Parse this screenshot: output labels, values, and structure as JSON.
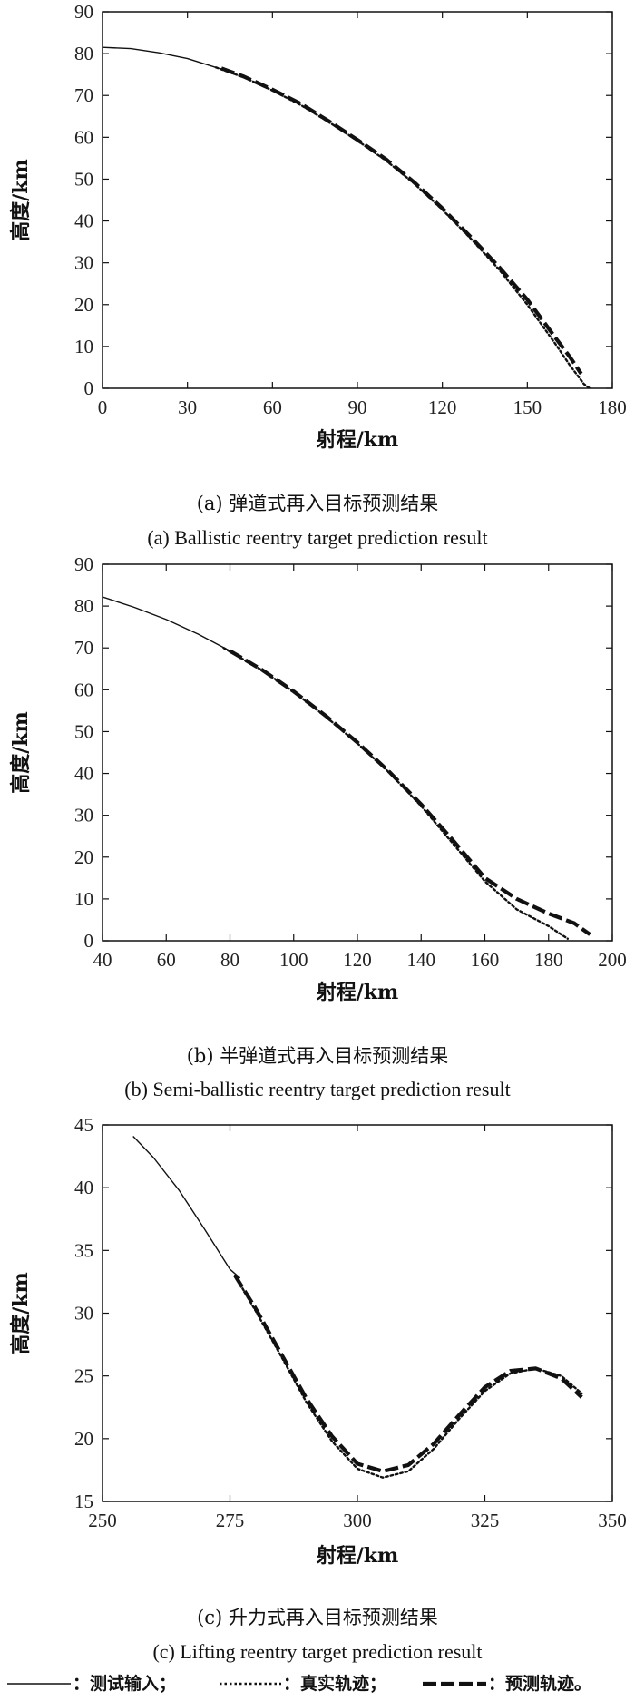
{
  "chart_data": [
    {
      "type": "line",
      "xlabel": "射程/km",
      "ylabel": "高度/km",
      "xlim": [
        0,
        180
      ],
      "ylim": [
        0,
        90
      ],
      "xticks": [
        0,
        30,
        60,
        90,
        120,
        150,
        180
      ],
      "yticks": [
        0,
        10,
        20,
        30,
        40,
        50,
        60,
        70,
        80,
        90
      ],
      "caption_cn": "(a) 弹道式再入目标预测结果",
      "caption_en": "(a) Ballistic reentry target prediction result",
      "series": [
        {
          "name": "测试输入",
          "style": "solid",
          "x": [
            0,
            10,
            20,
            30,
            40,
            45
          ],
          "y": [
            81.5,
            81.2,
            80.2,
            78.8,
            76.7,
            75.7
          ]
        },
        {
          "name": "真实轨迹",
          "style": "dotted",
          "x": [
            40,
            50,
            60,
            70,
            80,
            90,
            100,
            110,
            120,
            130,
            140,
            150,
            160,
            165,
            170,
            172
          ],
          "y": [
            76.7,
            74.3,
            71.2,
            67.7,
            63.6,
            59.2,
            54.5,
            49.0,
            42.7,
            35.8,
            28.4,
            20.0,
            10.5,
            5.5,
            1.0,
            0.0
          ]
        },
        {
          "name": "预测轨迹",
          "style": "dashed",
          "x": [
            42,
            50,
            60,
            70,
            80,
            90,
            100,
            110,
            120,
            130,
            140,
            150,
            160,
            165,
            169
          ],
          "y": [
            76.5,
            74.5,
            71.4,
            68.0,
            63.8,
            59.4,
            54.8,
            49.3,
            43.0,
            36.2,
            29.0,
            21.2,
            12.0,
            7.5,
            3.5
          ]
        }
      ]
    },
    {
      "type": "line",
      "xlabel": "射程/km",
      "ylabel": "高度/km",
      "xlim": [
        40,
        200
      ],
      "ylim": [
        0,
        90
      ],
      "xticks": [
        40,
        60,
        80,
        100,
        120,
        140,
        160,
        180,
        200
      ],
      "yticks": [
        0,
        10,
        20,
        30,
        40,
        50,
        60,
        70,
        80,
        90
      ],
      "caption_cn": "(b) 半弹道式再入目标预测结果",
      "caption_en": "(b) Semi-ballistic reentry target prediction result",
      "series": [
        {
          "name": "测试输入",
          "style": "solid",
          "x": [
            40,
            50,
            60,
            70,
            80
          ],
          "y": [
            82.2,
            79.7,
            76.8,
            73.3,
            69.3
          ]
        },
        {
          "name": "真实轨迹",
          "style": "dotted",
          "x": [
            78,
            90,
            100,
            110,
            120,
            130,
            140,
            150,
            160,
            170,
            180,
            186
          ],
          "y": [
            70.0,
            64.7,
            59.5,
            53.6,
            47.2,
            40.2,
            32.2,
            23.2,
            14.2,
            7.5,
            3.5,
            0.5
          ]
        },
        {
          "name": "预测轨迹",
          "style": "dashed",
          "x": [
            80,
            90,
            100,
            110,
            120,
            130,
            140,
            150,
            160,
            170,
            180,
            188,
            193
          ],
          "y": [
            69.3,
            64.8,
            59.6,
            53.8,
            47.4,
            40.4,
            32.6,
            24.0,
            15.0,
            10.0,
            6.5,
            4.2,
            1.5
          ]
        }
      ]
    },
    {
      "type": "line",
      "xlabel": "射程/km",
      "ylabel": "高度/km",
      "xlim": [
        250,
        350
      ],
      "ylim": [
        15,
        45
      ],
      "xticks": [
        250,
        275,
        300,
        325,
        350
      ],
      "yticks": [
        15,
        20,
        25,
        30,
        35,
        40,
        45
      ],
      "caption_cn": "(c) 升力式再入目标预测结果",
      "caption_en": "(c) Lifting reentry target prediction result",
      "series": [
        {
          "name": "测试输入",
          "style": "solid",
          "x": [
            256,
            260,
            265,
            270,
            275,
            277
          ],
          "y": [
            44.1,
            42.4,
            39.8,
            36.7,
            33.5,
            32.8
          ]
        },
        {
          "name": "真实轨迹",
          "style": "dotted",
          "x": [
            276,
            280,
            285,
            290,
            295,
            300,
            305,
            310,
            315,
            320,
            325,
            330,
            335,
            340,
            344
          ],
          "y": [
            33.0,
            30.2,
            26.6,
            22.9,
            19.8,
            17.6,
            16.9,
            17.4,
            19.2,
            21.6,
            23.8,
            25.2,
            25.6,
            25.0,
            23.6
          ]
        },
        {
          "name": "预测轨迹",
          "style": "dashed",
          "x": [
            276,
            280,
            285,
            290,
            295,
            300,
            305,
            310,
            315,
            320,
            325,
            330,
            335,
            340,
            344
          ],
          "y": [
            33.0,
            30.4,
            26.8,
            23.2,
            20.2,
            18.0,
            17.4,
            17.9,
            19.6,
            21.9,
            24.1,
            25.4,
            25.6,
            24.8,
            23.3
          ]
        }
      ]
    }
  ],
  "legend": [
    {
      "line_style": "solid",
      "label": "：测试输入；"
    },
    {
      "line_style": "dotted",
      "label": "：真实轨迹；"
    },
    {
      "line_style": "dashed",
      "label": "：预测轨迹。"
    }
  ]
}
